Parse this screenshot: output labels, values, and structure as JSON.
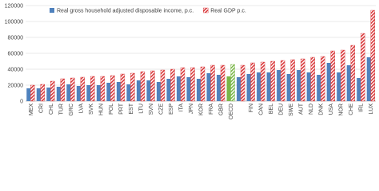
{
  "chart_data": {
    "type": "bar",
    "categories": [
      "MEX",
      "CRI",
      "CHL",
      "TUR",
      "GRC",
      "LVA",
      "SVK",
      "HUN",
      "POL",
      "PRT",
      "EST",
      "LTU",
      "SVN",
      "CZE",
      "ESP",
      "ITA",
      "JPN",
      "KOR",
      "FRA",
      "GBR",
      "OECD",
      null,
      "FIN",
      "CAN",
      "BEL",
      "DEU",
      "SWE",
      "AUT",
      "NLD",
      "DNK",
      "USA",
      "NOR",
      "CHE",
      "IRL",
      "LUX"
    ],
    "series": [
      {
        "name": "Real gross household adjusted disposable income, p.c.",
        "color": "#4f81bd",
        "hatched": false,
        "values": [
          16000,
          16000,
          17000,
          18000,
          21000,
          19000,
          20000,
          20000,
          23000,
          24000,
          21000,
          26000,
          26000,
          24000,
          28000,
          31000,
          30000,
          28000,
          35000,
          33000,
          31000,
          30000,
          34000,
          36000,
          36000,
          39000,
          34000,
          39000,
          36000,
          33000,
          48000,
          36000,
          45000,
          29000,
          55000
        ],
        "colors": [
          "#4f81bd",
          "#4f81bd",
          "#4f81bd",
          "#4f81bd",
          "#4f81bd",
          "#4f81bd",
          "#4f81bd",
          "#4f81bd",
          "#4f81bd",
          "#4f81bd",
          "#4f81bd",
          "#4f81bd",
          "#4f81bd",
          "#4f81bd",
          "#4f81bd",
          "#4f81bd",
          "#4f81bd",
          "#4f81bd",
          "#4f81bd",
          "#4f81bd",
          "#7ab648",
          "#4f81bd",
          "#4f81bd",
          "#4f81bd",
          "#4f81bd",
          "#4f81bd",
          "#4f81bd",
          "#4f81bd",
          "#4f81bd",
          "#4f81bd",
          "#4f81bd",
          "#4f81bd",
          "#4f81bd",
          "#4f81bd",
          "#4f81bd"
        ]
      },
      {
        "name": "Real GDP p.c.",
        "color": "#d9383a",
        "hatched": true,
        "values": [
          20000,
          21000,
          25000,
          28000,
          29000,
          30000,
          31000,
          31000,
          32000,
          34000,
          35000,
          37000,
          38000,
          39000,
          40000,
          42000,
          42000,
          43000,
          45000,
          45000,
          46000,
          45000,
          48000,
          49000,
          50000,
          51000,
          52000,
          53000,
          55000,
          56000,
          63000,
          64000,
          70000,
          85000,
          114000
        ],
        "colors": [
          "#d9383a",
          "#d9383a",
          "#d9383a",
          "#d9383a",
          "#d9383a",
          "#d9383a",
          "#d9383a",
          "#d9383a",
          "#d9383a",
          "#d9383a",
          "#d9383a",
          "#d9383a",
          "#d9383a",
          "#d9383a",
          "#d9383a",
          "#d9383a",
          "#d9383a",
          "#d9383a",
          "#d9383a",
          "#d9383a",
          "#7ab648",
          "#d9383a",
          "#d9383a",
          "#d9383a",
          "#d9383a",
          "#d9383a",
          "#d9383a",
          "#d9383a",
          "#d9383a",
          "#d9383a",
          "#d9383a",
          "#d9383a",
          "#d9383a",
          "#d9383a",
          "#d9383a"
        ]
      }
    ],
    "ylim": [
      0,
      120000
    ],
    "yticks": [
      0,
      20000,
      40000,
      60000,
      80000,
      100000,
      120000
    ],
    "grid": true,
    "legend": "top-left"
  }
}
